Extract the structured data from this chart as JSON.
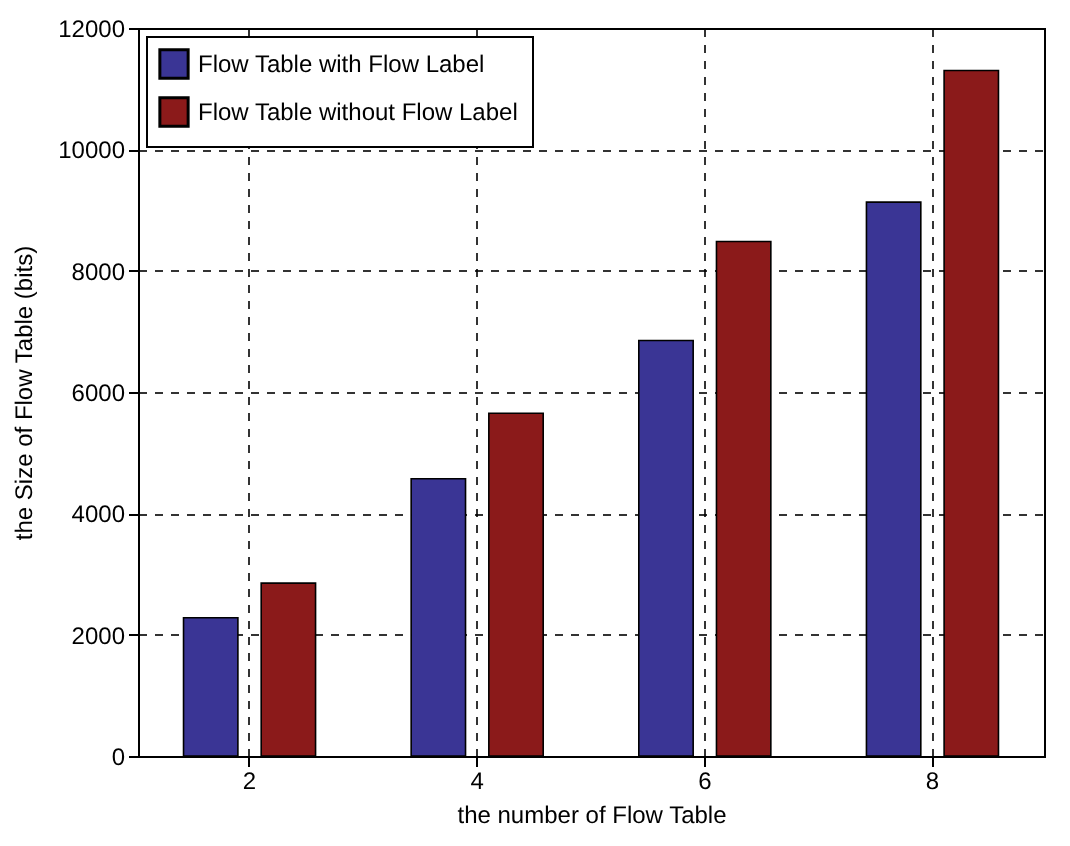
{
  "chart_data": {
    "type": "bar",
    "xlabel": "the number of Flow Table",
    "ylabel": "the Size of Flow Table (bits)",
    "categories": [
      "2",
      "4",
      "6",
      "8"
    ],
    "series": [
      {
        "name": "Flow Table with Flow Label",
        "color": "#3a3595",
        "values": [
          2280,
          4570,
          6850,
          9130
        ]
      },
      {
        "name": "Flow Table without Flow Label",
        "color": "#8b1a1a",
        "values": [
          2850,
          5650,
          8480,
          11300
        ]
      }
    ],
    "ylim": [
      0,
      12000
    ],
    "yticks": [
      0,
      2000,
      4000,
      6000,
      8000,
      10000,
      12000
    ],
    "grid": true,
    "legend": "top left"
  }
}
